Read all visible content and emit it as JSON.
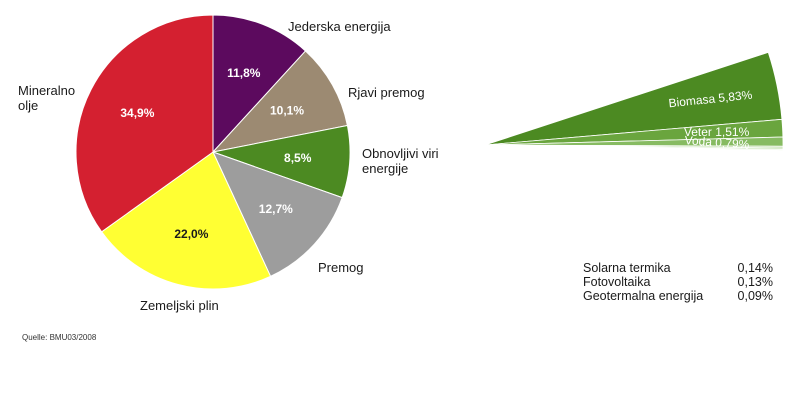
{
  "chart_data": [
    {
      "type": "pie",
      "slices": [
        {
          "label": "Jederska energija",
          "value": 11.8,
          "display": "11,8%",
          "color": "#5c0a5e",
          "label_color": "#ffffff"
        },
        {
          "label": "Rjavi premog",
          "value": 10.1,
          "display": "10,1%",
          "color": "#9c8a72",
          "label_color": "#ffffff"
        },
        {
          "label": "Obnovljivi viri energije",
          "value": 8.5,
          "display": "8,5%",
          "color": "#4c8a22",
          "label_color": "#ffffff"
        },
        {
          "label": "Premog",
          "value": 12.7,
          "display": "12,7%",
          "color": "#9d9d9d",
          "label_color": "#ffffff"
        },
        {
          "label": "Zemeljski plin",
          "value": 22.0,
          "display": "22,0%",
          "color": "#ffff33",
          "label_color": "#1a1a1a"
        },
        {
          "label": "Mineralno olje",
          "value": 34.9,
          "display": "34,9%",
          "color": "#d42030",
          "label_color": "#ffffff"
        }
      ]
    },
    {
      "type": "pie",
      "slices": [
        {
          "label": "Biomasa",
          "value": 5.83,
          "display": "5,83%",
          "color": "#4c8a22"
        },
        {
          "label": "Veter",
          "value": 1.51,
          "display": "1,51%",
          "color": "#6aa53e"
        },
        {
          "label": "Voda",
          "value": 0.79,
          "display": "0,79%",
          "color": "#87bb62"
        },
        {
          "label": "Solarna termika",
          "value": 0.14,
          "display": "0,14%",
          "color": "#a7d08a"
        },
        {
          "label": "Fotovoltaika",
          "value": 0.13,
          "display": "0,13%",
          "color": "#c2e0ad"
        },
        {
          "label": "Geotermalna energija",
          "value": 0.09,
          "display": "0,09%",
          "color": "#daedcd"
        }
      ]
    }
  ],
  "source": "Quelle:  BMU03/2008"
}
